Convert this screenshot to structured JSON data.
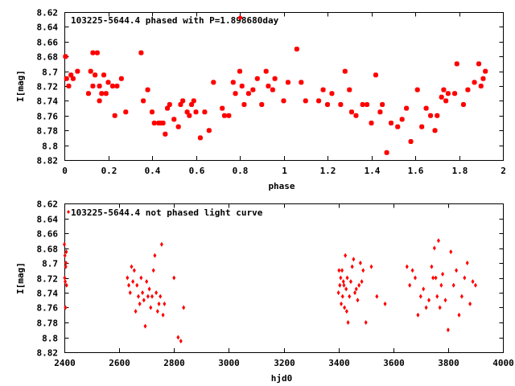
{
  "chart_data": [
    {
      "type": "scatter",
      "legend": "103225-5644.4 phased with P=1.898680day",
      "xlabel": "phase",
      "ylabel": "I[mag]",
      "xlim": [
        0,
        2
      ],
      "ylim": [
        8.82,
        8.62
      ],
      "y_inverted": true,
      "xticks": [
        "0",
        "0.2",
        "0.4",
        "0.6",
        "0.8",
        "1",
        "1.2",
        "1.4",
        "1.6",
        "1.8",
        "2"
      ],
      "yticks": [
        "8.62",
        "8.64",
        "8.66",
        "8.68",
        "8.7",
        "8.72",
        "8.74",
        "8.76",
        "8.78",
        "8.8",
        "8.82"
      ],
      "marker_color": "#ff0000",
      "x": [
        0.005,
        0.01,
        0.02,
        0.03,
        0.04,
        0.06,
        0.11,
        0.12,
        0.13,
        0.13,
        0.14,
        0.15,
        0.16,
        0.16,
        0.17,
        0.18,
        0.19,
        0.2,
        0.22,
        0.23,
        0.24,
        0.26,
        0.28,
        0.35,
        0.36,
        0.38,
        0.4,
        0.41,
        0.43,
        0.44,
        0.45,
        0.46,
        0.47,
        0.48,
        0.5,
        0.52,
        0.53,
        0.54,
        0.56,
        0.57,
        0.58,
        0.59,
        0.6,
        0.62,
        0.64,
        0.66,
        0.68,
        0.72,
        0.73,
        0.75,
        0.77,
        0.78,
        0.8,
        0.81,
        0.82,
        0.84,
        0.86,
        0.88,
        0.9,
        0.92,
        0.93,
        0.95,
        0.96,
        1.0,
        1.02,
        1.06,
        1.08,
        1.1,
        1.16,
        1.18,
        1.2,
        1.22,
        1.26,
        1.28,
        1.3,
        1.31,
        1.33,
        1.36,
        1.38,
        1.4,
        1.42,
        1.44,
        1.45,
        1.47,
        1.49,
        1.52,
        1.54,
        1.56,
        1.58,
        1.61,
        1.63,
        1.65,
        1.67,
        1.69,
        1.7,
        1.72,
        1.73,
        1.74,
        1.75,
        1.78,
        1.79,
        1.82,
        1.84,
        1.87,
        1.89,
        1.9,
        1.91,
        1.92
      ],
      "y": [
        8.68,
        8.71,
        8.72,
        8.705,
        8.71,
        8.7,
        8.73,
        8.7,
        8.72,
        8.675,
        8.705,
        8.675,
        8.72,
        8.74,
        8.73,
        8.705,
        8.73,
        8.715,
        8.72,
        8.76,
        8.72,
        8.71,
        8.755,
        8.675,
        8.74,
        8.725,
        8.755,
        8.77,
        8.77,
        8.77,
        8.77,
        8.785,
        8.75,
        8.745,
        8.765,
        8.775,
        8.745,
        8.74,
        8.755,
        8.76,
        8.745,
        8.74,
        8.755,
        8.79,
        8.755,
        8.78,
        8.715,
        8.75,
        8.76,
        8.76,
        8.715,
        8.73,
        8.7,
        8.72,
        8.745,
        8.73,
        8.725,
        8.71,
        8.745,
        8.7,
        8.72,
        8.725,
        8.71,
        8.74,
        8.715,
        8.67,
        8.715,
        8.74,
        8.74,
        8.725,
        8.745,
        8.73,
        8.745,
        8.7,
        8.725,
        8.755,
        8.76,
        8.745,
        8.745,
        8.77,
        8.705,
        8.755,
        8.745,
        8.81,
        8.77,
        8.775,
        8.765,
        8.75,
        8.795,
        8.725,
        8.775,
        8.75,
        8.76,
        8.78,
        8.76,
        8.735,
        8.725,
        8.74,
        8.73,
        8.73,
        8.69,
        8.745,
        8.725,
        8.715,
        8.69,
        8.72,
        8.71,
        8.7
      ]
    },
    {
      "type": "scatter",
      "legend": "103225-5644.4 not phased light curve",
      "xlabel": "hjd0",
      "ylabel": "I[mag]",
      "xlim": [
        2400,
        4000
      ],
      "ylim": [
        8.82,
        8.62
      ],
      "y_inverted": true,
      "xticks": [
        "2400",
        "2600",
        "2800",
        "3000",
        "3200",
        "3400",
        "3600",
        "3800",
        "4000"
      ],
      "yticks": [
        "8.62",
        "8.64",
        "8.66",
        "8.68",
        "8.7",
        "8.72",
        "8.74",
        "8.76",
        "8.78",
        "8.8",
        "8.82"
      ],
      "marker_color": "#ff0000",
      "x": [
        2400,
        2401,
        2402,
        2403,
        2404,
        2405,
        2406,
        2407,
        2408,
        2630,
        2635,
        2640,
        2645,
        2650,
        2655,
        2660,
        2665,
        2670,
        2675,
        2680,
        2685,
        2690,
        2695,
        2700,
        2705,
        2710,
        2715,
        2720,
        2725,
        2730,
        2735,
        2740,
        2745,
        2750,
        2755,
        2760,
        2765,
        2800,
        2815,
        2825,
        2835,
        3400,
        3402,
        3405,
        3408,
        3410,
        3413,
        3415,
        3418,
        3420,
        3422,
        3425,
        3428,
        3430,
        3432,
        3435,
        3440,
        3445,
        3450,
        3455,
        3460,
        3465,
        3470,
        3475,
        3480,
        3485,
        3490,
        3500,
        3520,
        3540,
        3570,
        3650,
        3660,
        3670,
        3680,
        3690,
        3700,
        3710,
        3720,
        3730,
        3740,
        3745,
        3750,
        3755,
        3760,
        3765,
        3770,
        3775,
        3780,
        3790,
        3800,
        3810,
        3820,
        3830,
        3840,
        3850,
        3860,
        3870,
        3880,
        3890,
        3900
      ],
      "y": [
        8.675,
        8.72,
        8.69,
        8.725,
        8.76,
        8.705,
        8.7,
        8.685,
        8.73,
        8.72,
        8.73,
        8.74,
        8.705,
        8.725,
        8.71,
        8.765,
        8.73,
        8.745,
        8.755,
        8.72,
        8.74,
        8.75,
        8.785,
        8.725,
        8.745,
        8.735,
        8.76,
        8.745,
        8.71,
        8.69,
        8.74,
        8.765,
        8.755,
        8.745,
        8.675,
        8.77,
        8.755,
        8.72,
        8.8,
        8.805,
        8.76,
        8.74,
        8.71,
        8.73,
        8.72,
        8.755,
        8.71,
        8.745,
        8.725,
        8.73,
        8.76,
        8.69,
        8.735,
        8.765,
        8.72,
        8.78,
        8.745,
        8.725,
        8.705,
        8.695,
        8.74,
        8.735,
        8.75,
        8.73,
        8.7,
        8.725,
        8.71,
        8.78,
        8.705,
        8.745,
        8.755,
        8.705,
        8.73,
        8.71,
        8.72,
        8.77,
        8.745,
        8.735,
        8.76,
        8.75,
        8.705,
        8.72,
        8.68,
        8.72,
        8.745,
        8.67,
        8.76,
        8.73,
        8.715,
        8.75,
        8.79,
        8.685,
        8.73,
        8.71,
        8.77,
        8.745,
        8.72,
        8.7,
        8.755,
        8.725,
        8.73
      ]
    }
  ]
}
